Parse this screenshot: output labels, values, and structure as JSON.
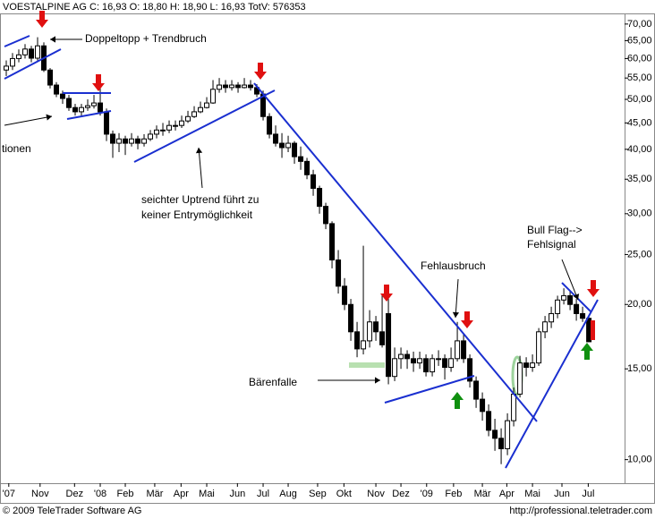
{
  "chart_data": {
    "type": "candlestick",
    "title": "VOESTALPINE AG C: 16,93 O: 18,80 H: 18,90 L: 16,93 TotV: 576353",
    "footer_left": "© 2009 TeleTrader Software AG",
    "footer_right": "http://professional.teletrader.com",
    "annotations": [
      "Doppeltopp + Trendbruch",
      "tionen",
      "seichter Uptrend führt zu",
      "keiner Entrymöglichkeit",
      "Fehlausbruch",
      "Bull Flag-->",
      "Fehlsignal",
      "Bärenfalle"
    ],
    "log_scale": true,
    "grid": false,
    "up_color": "#ffffff",
    "down_color": "#000000",
    "ylim": [
      9,
      73.4
    ],
    "yticks": [
      {
        "value": 10,
        "label": "10,00"
      },
      {
        "value": 15,
        "label": "15,00"
      },
      {
        "value": 20,
        "label": "20,00"
      },
      {
        "value": 25,
        "label": "25,00"
      },
      {
        "value": 30,
        "label": "30,00"
      },
      {
        "value": 35,
        "label": "35,00"
      },
      {
        "value": 40,
        "label": "40,00"
      },
      {
        "value": 45,
        "label": "45,00"
      },
      {
        "value": 50,
        "label": "50,00"
      },
      {
        "value": 55,
        "label": "55,00"
      },
      {
        "value": 60,
        "label": "60,00"
      },
      {
        "value": 65,
        "label": "65,00"
      },
      {
        "value": 70,
        "label": "70,00"
      }
    ],
    "xlim": [
      -1,
      98.7
    ],
    "xticks": [
      {
        "value": 0.4,
        "label": "'07"
      },
      {
        "value": 5.4,
        "label": "Nov"
      },
      {
        "value": 10.9,
        "label": "Dez"
      },
      {
        "value": 15,
        "label": "'08"
      },
      {
        "value": 19,
        "label": "Feb"
      },
      {
        "value": 23.7,
        "label": "Mär"
      },
      {
        "value": 27.9,
        "label": "Apr"
      },
      {
        "value": 32,
        "label": "Mai"
      },
      {
        "value": 36.9,
        "label": "Jun"
      },
      {
        "value": 41,
        "label": "Jul"
      },
      {
        "value": 45,
        "label": "Aug"
      },
      {
        "value": 49.7,
        "label": "Sep"
      },
      {
        "value": 53.9,
        "label": "Okt"
      },
      {
        "value": 59,
        "label": "Nov"
      },
      {
        "value": 63,
        "label": "Dez"
      },
      {
        "value": 67.1,
        "label": "'09"
      },
      {
        "value": 71.4,
        "label": "Feb"
      },
      {
        "value": 76,
        "label": "Mär"
      },
      {
        "value": 79.9,
        "label": "Apr"
      },
      {
        "value": 84,
        "label": "Mai"
      },
      {
        "value": 88.7,
        "label": "Jun"
      },
      {
        "value": 92.9,
        "label": "Jul"
      }
    ],
    "ohlc": [
      [
        57,
        59.5,
        55.5,
        58
      ],
      [
        58,
        61.5,
        57,
        60
      ],
      [
        60,
        62.5,
        59,
        61
      ],
      [
        61,
        64,
        60,
        62.6
      ],
      [
        62.6,
        63.5,
        59,
        60.1
      ],
      [
        60.1,
        66,
        59.5,
        63.5
      ],
      [
        63.5,
        64.5,
        56.5,
        57
      ],
      [
        57,
        57.5,
        52.5,
        53.3
      ],
      [
        53.3,
        54,
        50.5,
        51.2
      ],
      [
        51.2,
        52,
        49,
        50.2
      ],
      [
        50.2,
        51,
        47.5,
        48.2
      ],
      [
        48.2,
        49,
        46.5,
        47.3
      ],
      [
        47.3,
        49,
        46.5,
        48.2
      ],
      [
        48.2,
        50,
        47.5,
        48.6
      ],
      [
        48.6,
        51,
        48,
        49.2
      ],
      [
        49.2,
        52.5,
        46.5,
        47.3
      ],
      [
        47.3,
        48,
        41.5,
        42.8
      ],
      [
        42.8,
        43.5,
        38.5,
        41.1
      ],
      [
        41.1,
        43,
        39.5,
        41.9
      ],
      [
        41.9,
        42.5,
        39,
        41.1
      ],
      [
        41.1,
        43,
        40.5,
        41.9
      ],
      [
        41.9,
        42.5,
        40,
        41.1
      ],
      [
        41.1,
        42.8,
        40.5,
        41.9
      ],
      [
        41.9,
        43.6,
        41.5,
        42.8
      ],
      [
        42.8,
        44.5,
        42,
        43.6
      ],
      [
        43.6,
        45,
        42.5,
        43.6
      ],
      [
        43.6,
        45.5,
        43,
        44.5
      ],
      [
        44.5,
        45.5,
        43.5,
        44.5
      ],
      [
        44.5,
        46.5,
        44,
        45.4
      ],
      [
        45.4,
        47.5,
        45,
        46.3
      ],
      [
        46.3,
        48.5,
        46,
        47.3
      ],
      [
        47.3,
        49.5,
        47,
        48.2
      ],
      [
        48.2,
        50.5,
        48,
        49.2
      ],
      [
        49.2,
        54.5,
        49,
        52.3
      ],
      [
        52.3,
        55,
        51.5,
        53.3
      ],
      [
        53.3,
        54.5,
        51.5,
        52.7
      ],
      [
        52.7,
        54.5,
        52,
        53.3
      ],
      [
        53.3,
        54,
        51.5,
        52.7
      ],
      [
        52.7,
        55,
        52.5,
        53.3
      ],
      [
        53.3,
        54.5,
        52,
        52.7
      ],
      [
        52.7,
        53.5,
        50.5,
        51.2
      ],
      [
        51.2,
        52,
        45.5,
        46.3
      ],
      [
        46.3,
        47,
        42,
        42.8
      ],
      [
        42.8,
        44.5,
        40.5,
        41.1
      ],
      [
        41.1,
        43,
        38.5,
        40.3
      ],
      [
        40.3,
        42.5,
        39.5,
        41.1
      ],
      [
        41.1,
        41.5,
        37.5,
        38.7
      ],
      [
        38.7,
        40.5,
        36.5,
        37.9
      ],
      [
        37.9,
        38.5,
        35,
        35.7
      ],
      [
        35.7,
        36.5,
        32.5,
        33.6
      ],
      [
        33.6,
        34,
        30,
        31.0
      ],
      [
        31.0,
        31.5,
        28,
        28.7
      ],
      [
        28.7,
        29,
        23.5,
        24.4
      ],
      [
        24.4,
        25.5,
        21,
        21.7
      ],
      [
        21.7,
        22.5,
        19.5,
        20.0
      ],
      [
        20.0,
        20.5,
        17,
        17.7
      ],
      [
        17.7,
        18.5,
        15.8,
        16.4
      ],
      [
        16.4,
        26,
        16,
        17.0
      ],
      [
        17.0,
        19.5,
        16.5,
        18.5
      ],
      [
        18.5,
        19,
        17,
        17.7
      ],
      [
        17.7,
        21,
        16.5,
        16.7
      ],
      [
        19.2,
        20.5,
        14,
        14.5
      ],
      [
        14.5,
        16.5,
        14.2,
        15.7
      ],
      [
        15.7,
        16.5,
        15,
        16.0
      ],
      [
        16.0,
        16.3,
        15,
        15.7
      ],
      [
        15.7,
        16.2,
        14.8,
        15.4
      ],
      [
        15.4,
        16.2,
        15,
        15.7
      ],
      [
        15.7,
        16,
        14.5,
        14.8
      ],
      [
        14.8,
        16,
        14.5,
        15.7
      ],
      [
        15.7,
        16.3,
        15.2,
        15.7
      ],
      [
        15.7,
        16,
        14.3,
        15.1
      ],
      [
        15.1,
        16.5,
        14.8,
        15.7
      ],
      [
        15.7,
        18.5,
        15.5,
        17.0
      ],
      [
        17.0,
        17.5,
        15.4,
        15.7
      ],
      [
        15.7,
        16,
        13.8,
        14.2
      ],
      [
        14.2,
        14.5,
        12.6,
        13.1
      ],
      [
        13.1,
        13.5,
        11.9,
        12.4
      ],
      [
        12.4,
        12.8,
        11.1,
        11.4
      ],
      [
        11.4,
        12,
        10.4,
        11.0
      ],
      [
        11.0,
        11.5,
        9.8,
        10.5
      ],
      [
        10.5,
        12.3,
        10.2,
        11.9
      ],
      [
        11.9,
        13.8,
        11.6,
        13.4
      ],
      [
        13.4,
        15.9,
        13.2,
        15.4
      ],
      [
        15.4,
        15.8,
        14.5,
        15.1
      ],
      [
        15.1,
        16,
        14.8,
        15.4
      ],
      [
        15.4,
        18,
        15.2,
        17.7
      ],
      [
        17.7,
        19,
        17.2,
        18.5
      ],
      [
        18.5,
        19.8,
        18,
        19.2
      ],
      [
        19.2,
        20.8,
        18.8,
        20.4
      ],
      [
        20.4,
        21.5,
        20,
        20.8
      ],
      [
        20.8,
        21.2,
        19.5,
        20.0
      ],
      [
        20.0,
        20.5,
        18.6,
        19.2
      ],
      [
        19.2,
        19.8,
        18.5,
        18.8
      ],
      [
        18.8,
        18.9,
        16.93,
        16.93
      ]
    ]
  }
}
